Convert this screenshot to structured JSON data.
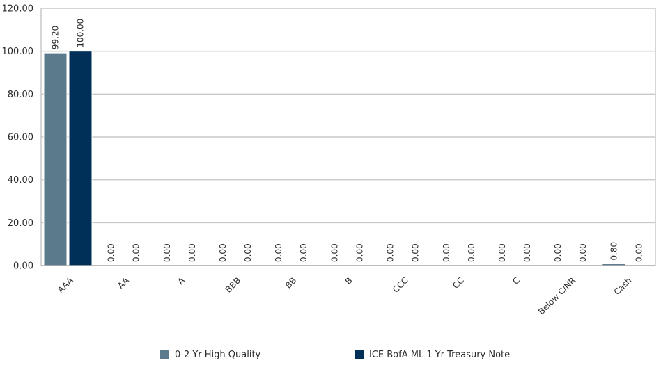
{
  "chart_data": {
    "type": "bar",
    "categories": [
      "AAA",
      "AA",
      "A",
      "BBB",
      "BB",
      "B",
      "CCC",
      "CC",
      "C",
      "Below C/NR",
      "Cash"
    ],
    "series": [
      {
        "name": "0-2 Yr High Quality",
        "color": "#5b7b8d",
        "values": [
          99.2,
          0.0,
          0.0,
          0.0,
          0.0,
          0.0,
          0.0,
          0.0,
          0.0,
          0.0,
          0.8
        ],
        "labels": [
          "99.20",
          "0.00",
          "0.00",
          "0.00",
          "0.00",
          "0.00",
          "0.00",
          "0.00",
          "0.00",
          "0.00",
          "0.80"
        ]
      },
      {
        "name": "ICE BofA ML 1 Yr Treasury Note",
        "color": "#003057",
        "values": [
          100.0,
          0.0,
          0.0,
          0.0,
          0.0,
          0.0,
          0.0,
          0.0,
          0.0,
          0.0,
          0.0
        ],
        "labels": [
          "100.00",
          "0.00",
          "0.00",
          "0.00",
          "0.00",
          "0.00",
          "0.00",
          "0.00",
          "0.00",
          "0.00",
          "0.00"
        ]
      }
    ],
    "y_ticks": [
      "0.00",
      "20.00",
      "40.00",
      "60.00",
      "80.00",
      "100.00",
      "120.00"
    ],
    "ylim": [
      0,
      120
    ],
    "grid": true,
    "legend_position": "bottom"
  }
}
